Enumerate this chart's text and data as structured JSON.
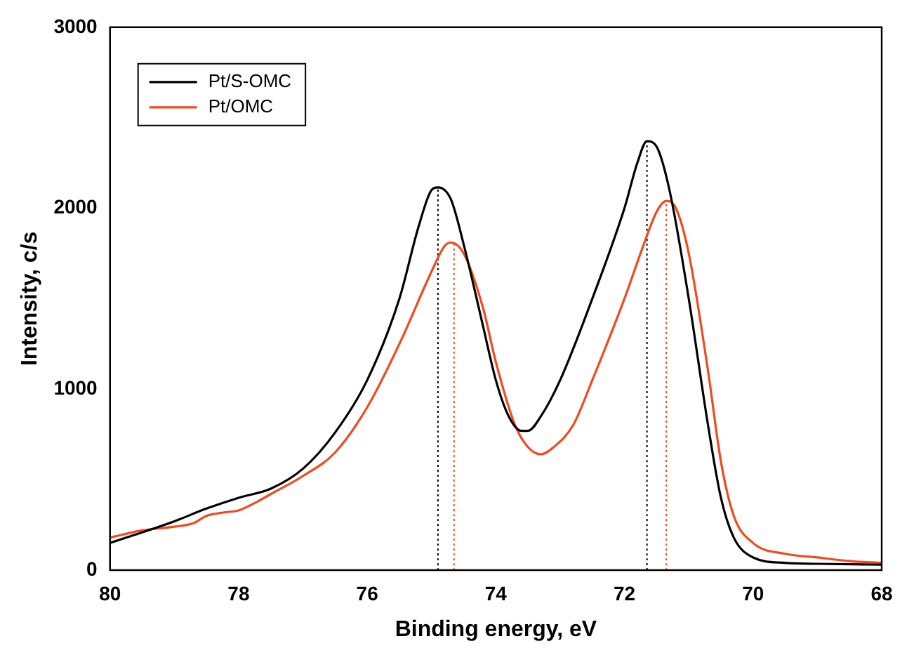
{
  "chart_data": {
    "type": "line",
    "xlabel": "Binding energy, eV",
    "ylabel": "Intensity, c/s",
    "xlim": [
      80,
      68
    ],
    "xticks": [
      80,
      78,
      76,
      74,
      72,
      70,
      68
    ],
    "ylim": [
      0,
      3000
    ],
    "yticks": [
      0,
      1000,
      2000,
      3000
    ],
    "grid": false,
    "legend": "top left",
    "marker": "none",
    "series": [
      {
        "name": "Pt/S-OMC",
        "color": "#000000",
        "line_style": "solid",
        "x": [
          80,
          79,
          78.5,
          78,
          77.5,
          77,
          76.5,
          76,
          75.5,
          75.2,
          75,
          74.9,
          74.7,
          74.5,
          74.2,
          74,
          73.8,
          73.6,
          73.5,
          73.3,
          73,
          72.5,
          72,
          71.8,
          71.65,
          71.5,
          71.3,
          71,
          70.7,
          70.5,
          70.3,
          70,
          69.5,
          69,
          68
        ],
        "values": [
          150,
          270,
          340,
          400,
          450,
          560,
          760,
          1050,
          1500,
          1900,
          2100,
          2115,
          2050,
          1800,
          1350,
          1050,
          850,
          770,
          770,
          850,
          1050,
          1500,
          2000,
          2250,
          2370,
          2340,
          2100,
          1500,
          800,
          400,
          180,
          70,
          40,
          35,
          30
        ]
      },
      {
        "name": "Pt/OMC",
        "color": "#f04a1e",
        "line_style": "solid",
        "x": [
          80,
          79.5,
          79,
          78.7,
          78.5,
          78.2,
          78,
          77.7,
          77.5,
          77,
          76.5,
          76,
          75.5,
          75,
          74.8,
          74.7,
          74.5,
          74.2,
          74,
          73.7,
          73.5,
          73.3,
          73.1,
          72.8,
          72.5,
          72,
          71.7,
          71.5,
          71.35,
          71.2,
          71,
          70.7,
          70.5,
          70.3,
          70,
          69.5,
          69,
          68.5,
          68
        ],
        "values": [
          180,
          220,
          240,
          260,
          300,
          320,
          330,
          380,
          420,
          520,
          650,
          900,
          1250,
          1650,
          1790,
          1810,
          1750,
          1450,
          1150,
          800,
          680,
          640,
          680,
          800,
          1050,
          1500,
          1800,
          1980,
          2040,
          2000,
          1750,
          1100,
          600,
          300,
          150,
          90,
          70,
          50,
          40
        ]
      },
      {
        "color": "#000000",
        "line_style": "dotted",
        "x": [
          74.9,
          74.9
        ],
        "values": [
          0,
          2115
        ]
      },
      {
        "color": "#f04a1e",
        "line_style": "dotted",
        "x": [
          74.65,
          74.65
        ],
        "values": [
          0,
          1810
        ]
      },
      {
        "color": "#000000",
        "line_style": "dotted",
        "x": [
          71.65,
          71.65
        ],
        "values": [
          0,
          2370
        ]
      },
      {
        "color": "#f04a1e",
        "line_style": "dotted",
        "x": [
          71.35,
          71.35
        ],
        "values": [
          0,
          2040
        ]
      }
    ]
  }
}
